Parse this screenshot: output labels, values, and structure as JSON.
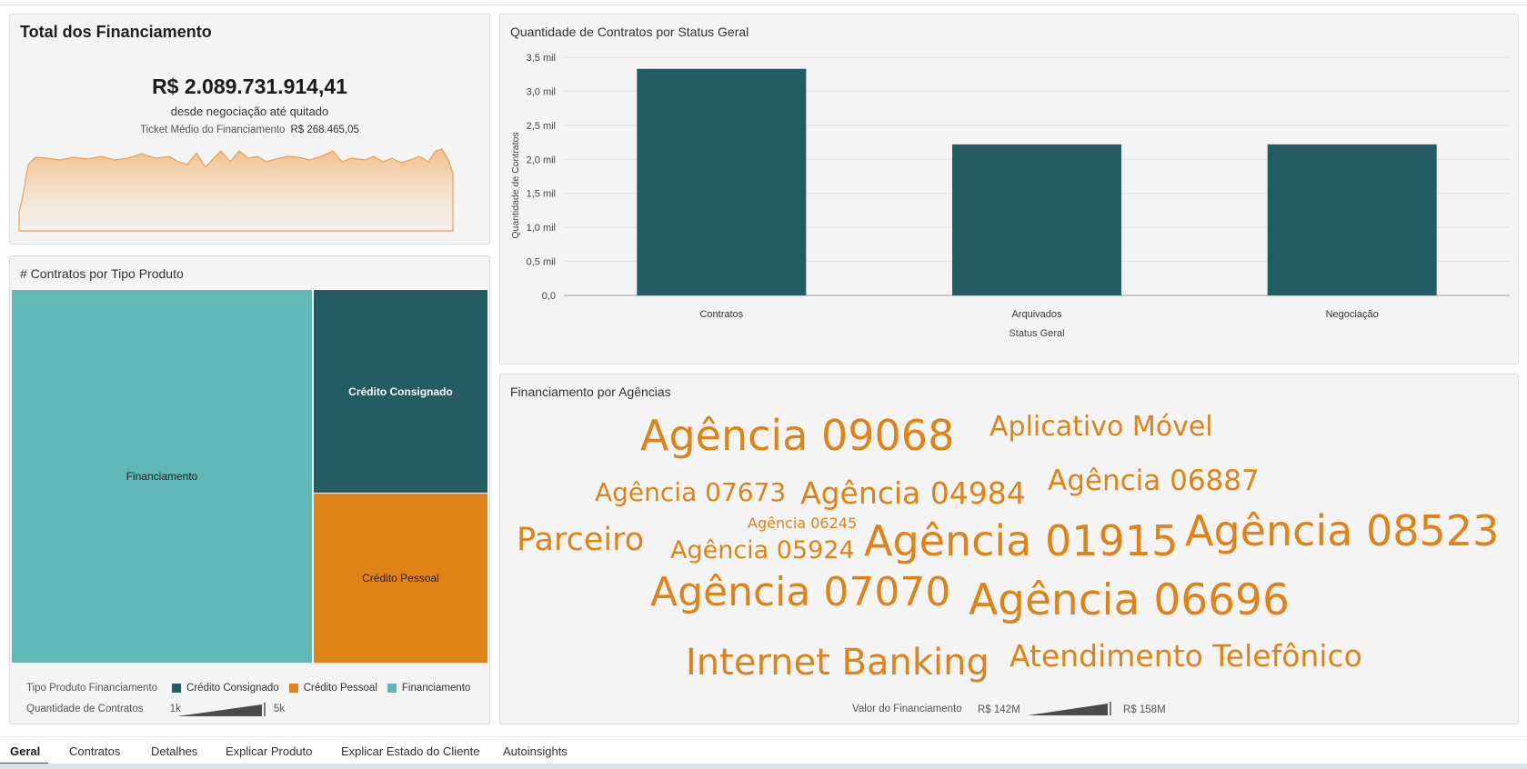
{
  "kpi": {
    "title": "Total dos Financiamento",
    "value": "R$ 2.089.731.914,41",
    "subtitle": "desde negociação até quitado",
    "ticket_label": "Ticket Médio do Financiamento",
    "ticket_value": "R$ 268.465,05",
    "sparkline_color": "#e8a15a"
  },
  "treemap": {
    "title": "# Contratos por Tipo Produto",
    "tiles": [
      {
        "label": "Financiamento",
        "color": "#5fb8b5",
        "text_color": "#1f1f1f"
      },
      {
        "label": "Crédito Consignado",
        "color": "#245c63",
        "text_color": "#ffffff"
      },
      {
        "label": "Crédito Pessoal",
        "color": "#e08316",
        "text_color": "#1f1f1f"
      }
    ],
    "legend_title": "Tipo Produto Financiamento",
    "legend": [
      {
        "label": "Crédito Consignado",
        "color": "#245c63"
      },
      {
        "label": "Crédito Pessoal",
        "color": "#e08316"
      },
      {
        "label": "Financiamento",
        "color": "#5fb8b5"
      }
    ],
    "size_legend_title": "Quantidade de Contratos",
    "size_min": "1k",
    "size_max": "5k"
  },
  "bar": {
    "title": "Quantidade de Contratos por Status Geral",
    "color": "#245c63",
    "chart_data": {
      "type": "bar",
      "categories": [
        "Contratos",
        "Arquivados",
        "Negociação"
      ],
      "values": [
        3330,
        2220,
        2220
      ],
      "ylim": [
        0,
        3500
      ],
      "yticks": [
        "0,0",
        "0,5 mil",
        "1,0 mil",
        "1,5 mil",
        "2,0 mil",
        "2,5 mil",
        "3,0 mil",
        "3,5 mil"
      ],
      "xlabel": "Status Geral",
      "ylabel": "Quantidade de Contratos",
      "grid": true
    }
  },
  "wordcloud": {
    "title": "Financiamento por Agências",
    "color": "#e08316",
    "words": [
      {
        "text": "Agência 09068"
      },
      {
        "text": "Aplicativo Móvel"
      },
      {
        "text": "Agência 07673"
      },
      {
        "text": "Agência 04984"
      },
      {
        "text": "Agência 06887"
      },
      {
        "text": "Agência 06245"
      },
      {
        "text": "Parceiro"
      },
      {
        "text": "Agência 05924"
      },
      {
        "text": "Agência 01915"
      },
      {
        "text": "Agência 08523"
      },
      {
        "text": "Agência 07070"
      },
      {
        "text": "Agência 06696"
      },
      {
        "text": "Internet Banking"
      },
      {
        "text": "Atendimento Telefônico"
      }
    ],
    "legend_title": "Valor do Financiamento",
    "legend_min": "R$ 142M",
    "legend_max": "R$ 158M"
  },
  "tabs": [
    {
      "label": "Geral",
      "active": true
    },
    {
      "label": "Contratos"
    },
    {
      "label": "Detalhes"
    },
    {
      "label": "Explicar Produto"
    },
    {
      "label": "Explicar Estado do Cliente"
    },
    {
      "label": "Autoinsights"
    }
  ]
}
